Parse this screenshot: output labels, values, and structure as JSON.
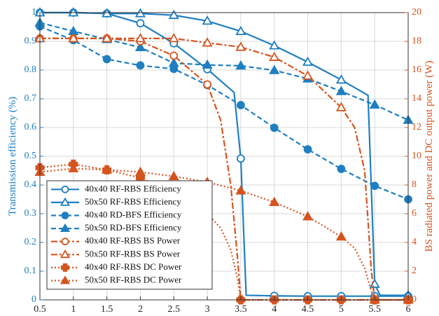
{
  "chart_data": {
    "type": "line",
    "xlabel": "",
    "x_ticks": [
      "0.5",
      "1",
      "1.5",
      "2",
      "2.5",
      "3",
      "3.5",
      "4",
      "4.5",
      "5",
      "5.5",
      "6"
    ],
    "xlim": [
      0.5,
      6
    ],
    "left_axis": {
      "label": "Transmission efficiency (%)",
      "ylim": [
        0,
        1
      ],
      "ticks": [
        "0",
        "0.1",
        "0.2",
        "0.3",
        "0.4",
        "0.5",
        "0.6",
        "0.7",
        "0.8",
        "0.9",
        "1"
      ]
    },
    "right_axis": {
      "label": "BS radiated power and DC output power (W)",
      "ylim": [
        0,
        20
      ],
      "ticks": [
        "0",
        "2",
        "4",
        "6",
        "8",
        "10",
        "12",
        "14",
        "16",
        "18",
        "20"
      ]
    },
    "grid": true,
    "legend_placement": "bottom-left",
    "series": [
      {
        "name": "40x40 RF-RBS Efficiency",
        "axis": "left",
        "color": "#1f7fc0",
        "style": "solid",
        "marker": "circle-open",
        "x": [
          0.5,
          1,
          1.5,
          2,
          2.5,
          3,
          3.4,
          3.5,
          3.58,
          4,
          4.5,
          5,
          5.5,
          6
        ],
        "y": [
          1.0,
          1.0,
          0.997,
          0.963,
          0.893,
          0.803,
          0.722,
          0.492,
          0.016,
          0.014,
          0.013,
          0.013,
          0.013,
          0.013
        ],
        "markers_at": [
          0.5,
          1,
          1.5,
          2,
          2.5,
          3,
          3.5,
          4,
          4.5,
          5,
          5.5,
          6
        ]
      },
      {
        "name": "50x50 RF-RBS Efficiency",
        "axis": "left",
        "color": "#1f7fc0",
        "style": "solid",
        "marker": "triangle-open",
        "x": [
          0.5,
          1,
          1.5,
          2,
          2.5,
          3,
          3.5,
          4,
          4.5,
          5,
          5.4,
          5.5,
          5.58,
          6
        ],
        "y": [
          1.0,
          1.0,
          0.997,
          0.997,
          0.991,
          0.971,
          0.935,
          0.885,
          0.828,
          0.766,
          0.712,
          0.055,
          0.016,
          0.016
        ],
        "markers_at": [
          0.5,
          1,
          1.5,
          2,
          2.5,
          3,
          3.5,
          4,
          4.5,
          5,
          5.5,
          6
        ]
      },
      {
        "name": "40x40 RD-BFS Efficiency",
        "axis": "left",
        "color": "#1f7fc0",
        "style": "dashed",
        "marker": "circle-filled",
        "x": [
          0.5,
          1,
          1.5,
          2,
          2.5,
          3,
          3.5,
          4,
          4.5,
          5,
          5.5,
          6
        ],
        "y": [
          0.952,
          0.904,
          0.838,
          0.816,
          0.804,
          0.748,
          0.678,
          0.599,
          0.524,
          0.456,
          0.397,
          0.35
        ],
        "markers_at": [
          0.5,
          1,
          1.5,
          2,
          2.5,
          3,
          3.5,
          4,
          4.5,
          5,
          5.5,
          6
        ]
      },
      {
        "name": "50x50 RD-BFS Efficiency",
        "axis": "left",
        "color": "#1f7fc0",
        "style": "dashed",
        "marker": "triangle-filled",
        "x": [
          0.5,
          1,
          1.5,
          2,
          2.5,
          3,
          3.5,
          4,
          4.5,
          5,
          5.5,
          6
        ],
        "y": [
          0.965,
          0.935,
          0.907,
          0.879,
          0.824,
          0.818,
          0.815,
          0.799,
          0.77,
          0.726,
          0.679,
          0.626
        ],
        "markers_at": [
          0.5,
          1,
          1.5,
          2,
          2.5,
          3,
          3.5,
          4,
          4.5,
          5,
          5.5,
          6
        ]
      },
      {
        "name": "40x40 RF-RBS BS Power",
        "axis": "right",
        "color": "#d4541f",
        "style": "dashdot",
        "marker": "circle-open",
        "x": [
          0.5,
          1,
          1.5,
          2,
          2.5,
          3,
          3.2,
          3.35,
          3.45,
          3.5,
          4,
          4.5,
          5,
          5.5,
          6
        ],
        "y": [
          18.2,
          18.2,
          18.2,
          18.0,
          17.0,
          15.0,
          12.5,
          8.0,
          3.0,
          0.0,
          0.0,
          0.0,
          0.0,
          0.0,
          0.0
        ],
        "markers_at": [
          0.5,
          1,
          1.5,
          2,
          2.5,
          3,
          3.5,
          4,
          4.5,
          5,
          5.5,
          6
        ]
      },
      {
        "name": "50x50 RF-RBS BS Power",
        "axis": "right",
        "color": "#d4541f",
        "style": "dashdot",
        "marker": "triangle-open",
        "x": [
          0.5,
          1,
          1.5,
          2,
          2.5,
          3,
          3.5,
          4,
          4.5,
          5,
          5.2,
          5.35,
          5.45,
          5.5,
          6
        ],
        "y": [
          18.2,
          18.2,
          18.2,
          18.2,
          18.2,
          17.9,
          17.6,
          16.9,
          15.6,
          13.4,
          12.0,
          9.0,
          2.0,
          0.0,
          0.0
        ],
        "markers_at": [
          0.5,
          1,
          1.5,
          2,
          2.5,
          3,
          3.5,
          4,
          4.5,
          5,
          5.5,
          6
        ]
      },
      {
        "name": "40x40 RF-RBS DC Power",
        "axis": "right",
        "color": "#d4541f",
        "style": "dotted",
        "marker": "plus-filled",
        "x": [
          0.5,
          1,
          1.5,
          2,
          2.5,
          3,
          3.2,
          3.35,
          3.45,
          3.5,
          4,
          4.5,
          5,
          5.5,
          6
        ],
        "y": [
          9.2,
          9.45,
          9.05,
          8.5,
          7.5,
          6.0,
          5.0,
          3.5,
          1.5,
          0.0,
          0.0,
          0.0,
          0.0,
          0.0,
          0.0
        ],
        "markers_at": [
          0.5,
          1,
          1.5,
          2,
          2.5,
          3,
          3.5,
          4,
          4.5,
          5,
          5.5,
          6
        ]
      },
      {
        "name": "50x50 RF-RBS DC Power",
        "axis": "right",
        "color": "#d4541f",
        "style": "dotted",
        "marker": "triangle-filled",
        "x": [
          0.5,
          1,
          1.5,
          2,
          2.5,
          3,
          3.5,
          4,
          4.5,
          5,
          5.2,
          5.35,
          5.45,
          5.5,
          6
        ],
        "y": [
          8.9,
          9.15,
          9.05,
          8.9,
          8.6,
          8.2,
          7.6,
          6.8,
          5.8,
          4.4,
          3.6,
          2.2,
          0.6,
          0.0,
          0.0
        ],
        "markers_at": [
          0.5,
          1,
          1.5,
          2,
          2.5,
          3,
          3.5,
          4,
          4.5,
          5,
          5.5,
          6
        ]
      }
    ]
  }
}
